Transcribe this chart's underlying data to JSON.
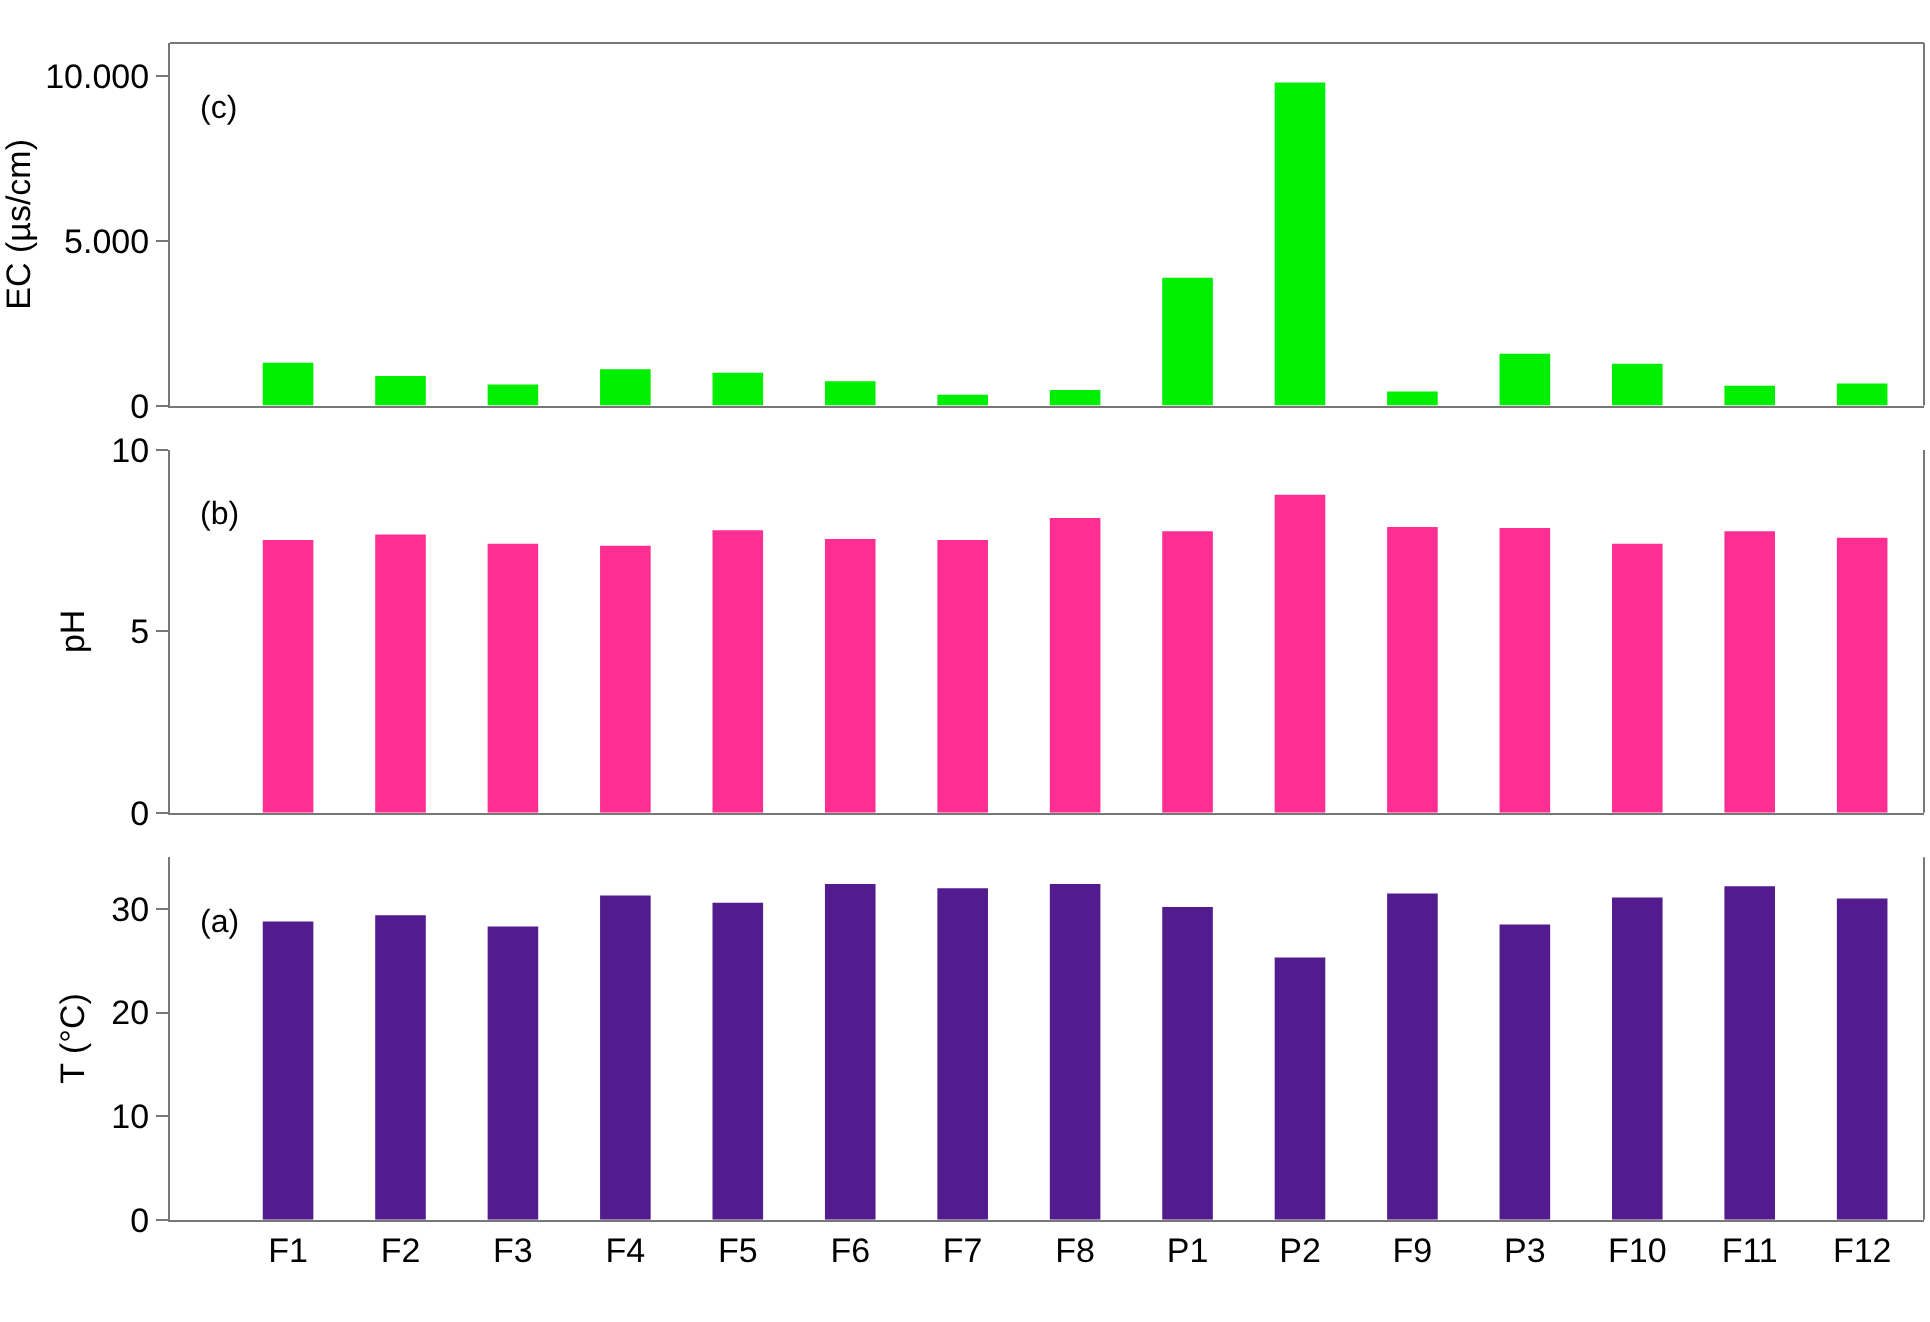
{
  "chart_data": [
    {
      "type": "bar",
      "ylabel": "EC (µs/cm)",
      "annotations": [
        "(c)"
      ],
      "categories": [
        null,
        null,
        null,
        null,
        null,
        null,
        null,
        null,
        null,
        null,
        null,
        null,
        null,
        null,
        null
      ],
      "tick_labels": "y",
      "values": [
        1300,
        900,
        640,
        1100,
        1000,
        740,
        330,
        470,
        3880,
        9800,
        430,
        1570,
        1270,
        600,
        670
      ],
      "color": "#00ee00",
      "ylim": [
        0,
        11000
      ],
      "yticks": [
        0,
        {
          "value": 5000,
          "label": "5.000"
        },
        {
          "value": 10000,
          "label": "10.000"
        }
      ]
    },
    {
      "type": "bar",
      "ylabel": "pH",
      "annotations": [
        "(b)"
      ],
      "categories": [
        null,
        null,
        null,
        null,
        null,
        null,
        null,
        null,
        null,
        null,
        null,
        null,
        null,
        null,
        null
      ],
      "tick_labels": "y",
      "values": [
        7.52,
        7.67,
        7.42,
        7.36,
        7.79,
        7.55,
        7.52,
        8.13,
        7.76,
        8.77,
        7.88,
        7.85,
        7.42,
        7.76,
        7.58
      ],
      "color": "#ff2e93",
      "ylim": [
        0,
        10
      ],
      "yticks": [
        0,
        5,
        10
      ]
    },
    {
      "type": "bar",
      "ylabel": "T (°C)",
      "annotations": [
        "(a)"
      ],
      "categories": [
        "F1",
        "F2",
        "F3",
        "F4",
        "F5",
        "F6",
        "F7",
        "F8",
        "P1",
        "P2",
        "F9",
        "P3",
        "F10",
        "F11",
        "F12"
      ],
      "values": [
        28.8,
        29.4,
        28.3,
        31.3,
        30.6,
        32.4,
        32.0,
        32.4,
        30.2,
        25.3,
        31.5,
        28.5,
        31.1,
        32.2,
        31.0
      ],
      "color": "#521b8e",
      "ylim": [
        0,
        35
      ],
      "yticks": [
        0,
        10,
        20,
        30
      ]
    }
  ]
}
